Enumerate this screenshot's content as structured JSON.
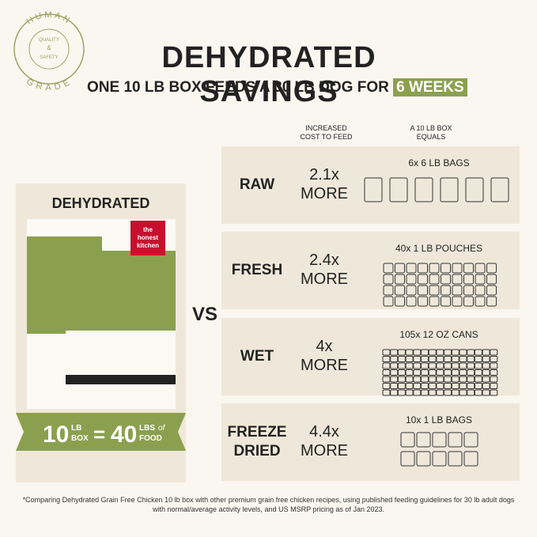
{
  "badge": {
    "top": "HUMAN",
    "bottom": "GRADE",
    "center": [
      "QUALITY",
      "&",
      "SAFETY"
    ]
  },
  "header": {
    "title": "DEHYDRATED SAVINGS",
    "subtitle": "ONE 10 LB BOX FEEDS A 30 LB DOG FOR",
    "highlight": "6 WEEKS"
  },
  "columns": [
    "INCREASED COST TO FEED",
    "A 10 LB BOX EQUALS"
  ],
  "product": {
    "label": "DEHYDRATED",
    "logo": [
      "the",
      "honest",
      "kitchen"
    ],
    "banner": {
      "left_number": "10",
      "left_units": [
        "LB",
        "BOX"
      ],
      "equals": "=",
      "right_number": "40",
      "right_units": [
        "LBS",
        "of",
        "FOOD"
      ]
    }
  },
  "vs": "VS",
  "rows": [
    {
      "label": "RAW",
      "cost": "2.1x",
      "more": "MORE",
      "equals": "6x 6 LB BAGS"
    },
    {
      "label": "FRESH",
      "cost": "2.4x",
      "more": "MORE",
      "equals": "40x 1 LB POUCHES"
    },
    {
      "label": "WET",
      "cost": "4x",
      "more": "MORE",
      "equals": "105x 12 OZ CANS"
    },
    {
      "label": "FREEZE DRIED",
      "cost": "4.4x",
      "more": "MORE",
      "equals": "10x 1 LB BAGS"
    }
  ],
  "footnote": "*Comparing Dehydrated Grain Free Chicken 10 lb box with other premium grain free chicken recipes, using published feeding guidelines for 30 lb adult dogs with normal/average activity levels, and US MSRP pricing as of Jan 2023."
}
